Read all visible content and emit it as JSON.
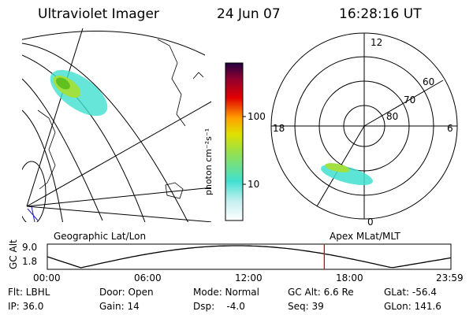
{
  "header": {
    "instrument": "Ultraviolet Imager",
    "date": "24 Jun 07",
    "time": "16:28:16 UT"
  },
  "colorbar": {
    "label": "photon cm⁻²s⁻¹",
    "ticks": [
      "100",
      "10"
    ],
    "colors": [
      "#ffffff",
      "#c8f0f0",
      "#40e0d0",
      "#a0e040",
      "#e0e000",
      "#ffa000",
      "#e00000",
      "#900030",
      "#200040"
    ]
  },
  "polar_map": {
    "mlt_labels": {
      "top": "12",
      "left": "18",
      "right": "6",
      "bottom": "0"
    },
    "lat_labels": [
      "60",
      "70",
      "80"
    ]
  },
  "orbit_panel": {
    "left_title": "Geographic Lat/Lon",
    "right_title": "Apex MLat/MLT",
    "axis_label": "GC Alt",
    "y_ticks": [
      "9.0",
      "1.8"
    ],
    "x_ticks": [
      "00:00",
      "06:00",
      "12:00",
      "18:00",
      "23:59"
    ],
    "marker_hour": 16.47
  },
  "info": {
    "flt": "Flt: LBHL",
    "ip": "IP: 36.0",
    "door": "Door: Open",
    "gain": "Gain: 14",
    "mode": "Mode: Normal",
    "dsp": "Dsp:    -4.0",
    "gcalt": "GC Alt: 6.6 Re",
    "seq": "Seq: 39",
    "glat": "GLat: -56.4",
    "glon": "GLon: 141.6"
  },
  "colors": {
    "marker": "#e00000",
    "aurora_green": "#80d020",
    "aurora_cyan": "#40e0d0"
  }
}
